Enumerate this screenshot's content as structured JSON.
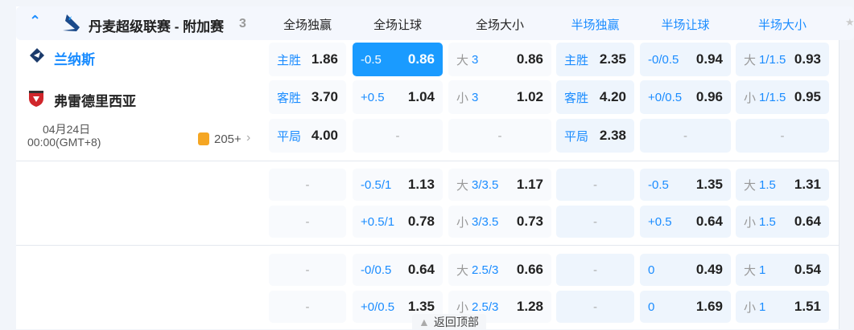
{
  "league": {
    "name": "丹麦超级联赛 - 附加赛",
    "count": "3"
  },
  "columns": [
    "全场独赢",
    "全场让球",
    "全场大小",
    "半场独赢",
    "半场让球",
    "半场大小"
  ],
  "match": {
    "home": "兰纳斯",
    "away": "弗雷德里西亚",
    "date": "04月24日",
    "time": "00:00(GMT+8)",
    "more": "205+"
  },
  "back_to_top": "返回顶部",
  "colors": {
    "accent": "#1a9bff",
    "text_blue": "#1a8cff"
  },
  "blocks": [
    [
      [
        {
          "k": "",
          "h": "主胜",
          "v": "1.86"
        },
        {
          "h": "-0.5",
          "v": "0.86",
          "selected": true
        },
        {
          "k": "大",
          "h": "3",
          "v": "0.86"
        },
        {
          "h": "主胜",
          "v": "2.35"
        },
        {
          "h": "-0/0.5",
          "v": "0.94"
        },
        {
          "k": "大",
          "h": "1/1.5",
          "v": "0.93"
        }
      ],
      [
        {
          "h": "客胜",
          "v": "3.70"
        },
        {
          "h": "+0.5",
          "v": "1.04"
        },
        {
          "k": "小",
          "h": "3",
          "v": "1.02"
        },
        {
          "h": "客胜",
          "v": "4.20"
        },
        {
          "h": "+0/0.5",
          "v": "0.96"
        },
        {
          "k": "小",
          "h": "1/1.5",
          "v": "0.95"
        }
      ],
      [
        {
          "h": "平局",
          "v": "4.00"
        },
        {
          "empty": "-"
        },
        {
          "empty": "-"
        },
        {
          "h": "平局",
          "v": "2.38"
        },
        {
          "empty": "-"
        },
        {
          "empty": "-"
        }
      ]
    ],
    [
      [
        {
          "empty": "-"
        },
        {
          "h": "-0.5/1",
          "v": "1.13"
        },
        {
          "k": "大",
          "h": "3/3.5",
          "v": "1.17"
        },
        {
          "empty": "-"
        },
        {
          "h": "-0.5",
          "v": "1.35"
        },
        {
          "k": "大",
          "h": "1.5",
          "v": "1.31"
        }
      ],
      [
        {
          "empty": "-"
        },
        {
          "h": "+0.5/1",
          "v": "0.78"
        },
        {
          "k": "小",
          "h": "3/3.5",
          "v": "0.73"
        },
        {
          "empty": "-"
        },
        {
          "h": "+0.5",
          "v": "0.64"
        },
        {
          "k": "小",
          "h": "1.5",
          "v": "0.64"
        }
      ]
    ],
    [
      [
        {
          "empty": "-"
        },
        {
          "h": "-0/0.5",
          "v": "0.64"
        },
        {
          "k": "大",
          "h": "2.5/3",
          "v": "0.66"
        },
        {
          "empty": "-"
        },
        {
          "h": "0",
          "v": "0.49"
        },
        {
          "k": "大",
          "h": "1",
          "v": "0.54"
        }
      ],
      [
        {
          "empty": "-"
        },
        {
          "h": "+0/0.5",
          "v": "1.35"
        },
        {
          "k": "小",
          "h": "2.5/3",
          "v": "1.28"
        },
        {
          "empty": "-"
        },
        {
          "h": "0",
          "v": "1.69"
        },
        {
          "k": "小",
          "h": "1",
          "v": "1.51"
        }
      ]
    ]
  ]
}
